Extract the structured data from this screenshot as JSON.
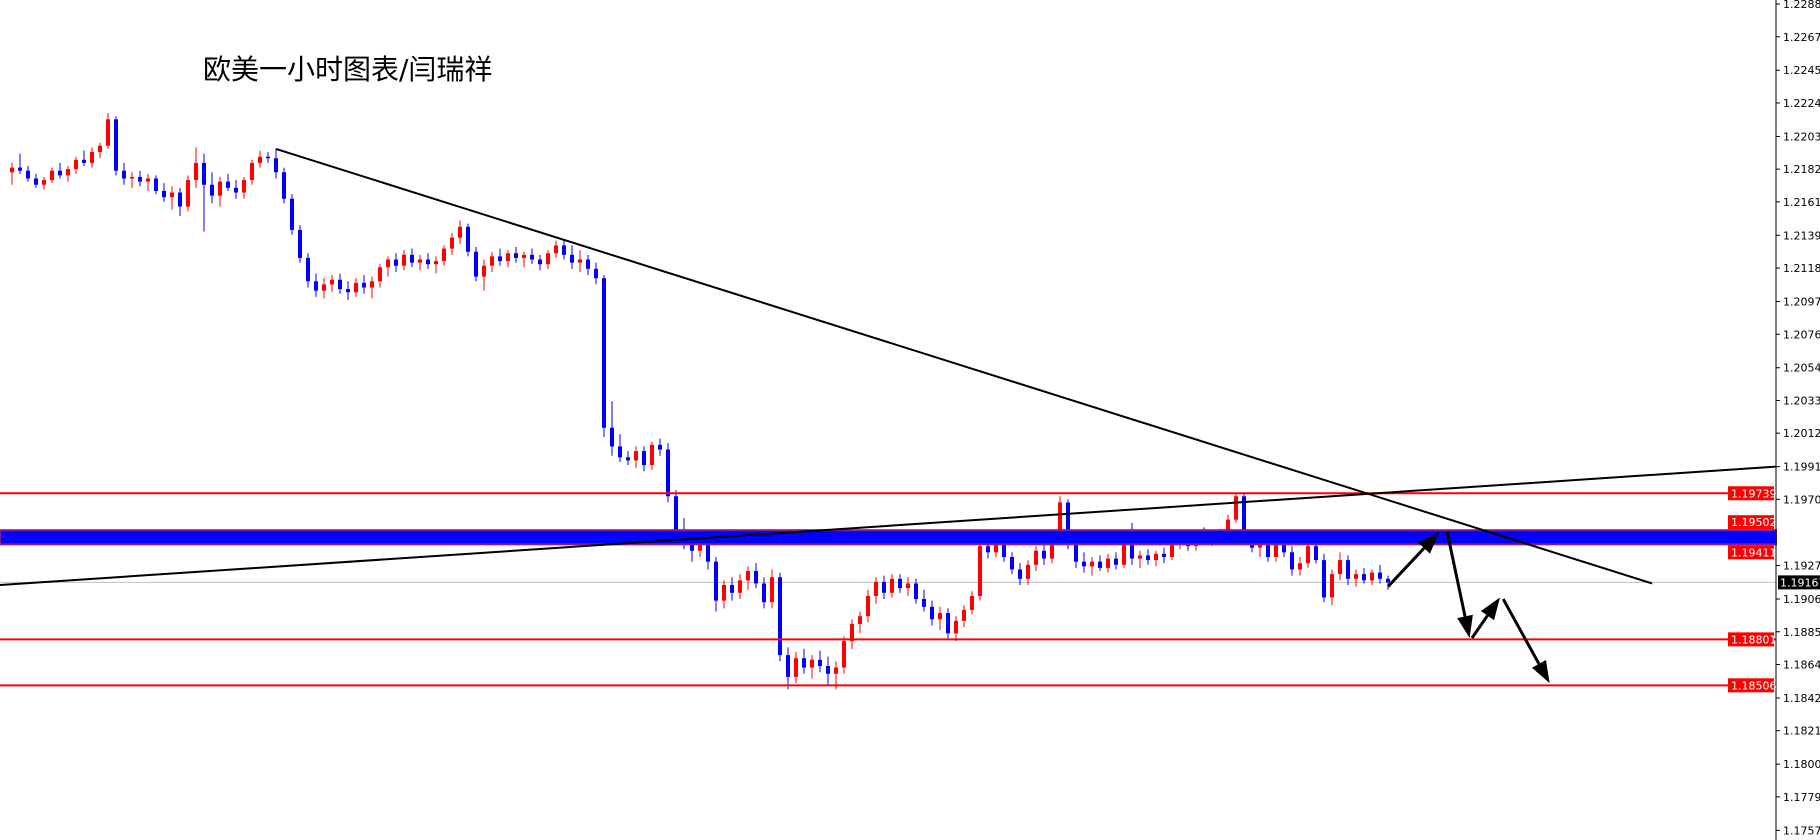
{
  "chart_data": {
    "type": "candlestick",
    "title": "欧美一小时图表/闫瑞祥",
    "ylim": [
      1.17513,
      1.22906
    ],
    "y_ticks": [
      "1.22880",
      "1.22670",
      "1.22455",
      "1.22245",
      "1.22030",
      "1.21820",
      "1.21610",
      "1.21395",
      "1.21185",
      "1.20970",
      "1.20760",
      "1.20545",
      "1.20335",
      "1.20125",
      "1.19910",
      "1.19700",
      "1.19275",
      "1.19060",
      "1.18850",
      "1.18640",
      "1.18425",
      "1.18215",
      "1.18000",
      "1.17790",
      "1.17575"
    ],
    "grid": false,
    "colors": {
      "bull": "#ff0000",
      "bear": "#0000ff",
      "support_resistance": "#ff0000",
      "zone_fill": "#0000ff",
      "zone_border": "#8b1a8b",
      "trendline": "#000000",
      "current_price_line": "#c0c0c0"
    },
    "current_price": {
      "value": 1.19167,
      "label": "1.19167"
    },
    "horizontal_levels": [
      {
        "value": 1.19739,
        "label": "1.19739"
      },
      {
        "value": 1.18801,
        "label": "1.18801"
      },
      {
        "value": 1.18506,
        "label": "1.18506"
      }
    ],
    "zone": {
      "upper": 1.19502,
      "lower": 1.19411,
      "upper_label": "1.19502",
      "lower_label": "1.19411"
    },
    "trendlines": [
      {
        "from": [
          33,
          1.2195
        ],
        "to": [
          205,
          1.1916
        ]
      },
      {
        "from": [
          -1.5,
          1.1915
        ],
        "to": [
          220.5,
          1.1991
        ]
      }
    ],
    "arrows": [
      {
        "from": [
          172,
          1.1914
        ],
        "to": [
          178.4,
          1.1949
        ]
      },
      {
        "from": [
          179.4,
          1.1949
        ],
        "to": [
          182.2,
          1.1881
        ]
      },
      {
        "from": [
          182.5,
          1.1881
        ],
        "to": [
          186,
          1.1907
        ]
      },
      {
        "from": [
          186.4,
          1.1906
        ],
        "to": [
          192.2,
          1.1852
        ]
      }
    ],
    "candles_ohlc": [
      [
        1.218,
        1.2186,
        1.2172,
        1.2183
      ],
      [
        1.2183,
        1.2192,
        1.2179,
        1.2181
      ],
      [
        1.2181,
        1.2184,
        1.2174,
        1.2176
      ],
      [
        1.2176,
        1.2179,
        1.217,
        1.2172
      ],
      [
        1.2172,
        1.2177,
        1.2169,
        1.2175
      ],
      [
        1.2175,
        1.2183,
        1.2173,
        1.2181
      ],
      [
        1.2181,
        1.2186,
        1.2176,
        1.2178
      ],
      [
        1.2178,
        1.2184,
        1.2174,
        1.2182
      ],
      [
        1.2182,
        1.219,
        1.2179,
        1.2188
      ],
      [
        1.2188,
        1.2194,
        1.2184,
        1.2186
      ],
      [
        1.2186,
        1.2196,
        1.2183,
        1.2193
      ],
      [
        1.2193,
        1.2199,
        1.2189,
        1.2197
      ],
      [
        1.2197,
        1.2218,
        1.2195,
        1.2214
      ],
      [
        1.2214,
        1.2216,
        1.2178,
        1.2181
      ],
      [
        1.2181,
        1.2186,
        1.2172,
        1.2176
      ],
      [
        1.2176,
        1.218,
        1.217,
        1.2177
      ],
      [
        1.2177,
        1.2181,
        1.2171,
        1.2174
      ],
      [
        1.2174,
        1.2179,
        1.2168,
        1.2176
      ],
      [
        1.2176,
        1.2178,
        1.2166,
        1.2168
      ],
      [
        1.2168,
        1.2173,
        1.2161,
        1.2164
      ],
      [
        1.2164,
        1.2171,
        1.2156,
        1.2167
      ],
      [
        1.2167,
        1.217,
        1.2152,
        1.2158
      ],
      [
        1.2158,
        1.2178,
        1.2155,
        1.2175
      ],
      [
        1.2175,
        1.2196,
        1.217,
        1.2186
      ],
      [
        1.2186,
        1.2192,
        1.2142,
        1.2172
      ],
      [
        1.2172,
        1.218,
        1.216,
        1.2165
      ],
      [
        1.2165,
        1.2177,
        1.2158,
        1.2174
      ],
      [
        1.2174,
        1.2179,
        1.2168,
        1.217
      ],
      [
        1.217,
        1.2175,
        1.2163,
        1.2167
      ],
      [
        1.2167,
        1.2177,
        1.2163,
        1.2175
      ],
      [
        1.2175,
        1.2188,
        1.2172,
        1.2186
      ],
      [
        1.2186,
        1.2194,
        1.2183,
        1.219
      ],
      [
        1.219,
        1.2193,
        1.2186,
        1.2189
      ],
      [
        1.2189,
        1.2195,
        1.2176,
        1.218
      ],
      [
        1.218,
        1.2183,
        1.216,
        1.2163
      ],
      [
        1.2163,
        1.2166,
        1.214,
        1.2143
      ],
      [
        1.2143,
        1.2146,
        1.2122,
        1.2125
      ],
      [
        1.2125,
        1.2128,
        1.2106,
        1.211
      ],
      [
        1.211,
        1.2115,
        1.21,
        1.2104
      ],
      [
        1.2104,
        1.2112,
        1.2099,
        1.2108
      ],
      [
        1.2108,
        1.2114,
        1.2103,
        1.2111
      ],
      [
        1.2111,
        1.2115,
        1.2102,
        1.2105
      ],
      [
        1.2105,
        1.211,
        1.2098,
        1.2103
      ],
      [
        1.2103,
        1.2112,
        1.21,
        1.2109
      ],
      [
        1.2109,
        1.2114,
        1.2102,
        1.2106
      ],
      [
        1.2106,
        1.2113,
        1.2099,
        1.211
      ],
      [
        1.211,
        1.2121,
        1.2106,
        1.2119
      ],
      [
        1.2119,
        1.2126,
        1.2113,
        1.2124
      ],
      [
        1.2124,
        1.2128,
        1.2116,
        1.212
      ],
      [
        1.212,
        1.213,
        1.2117,
        1.2127
      ],
      [
        1.2127,
        1.2131,
        1.2119,
        1.2122
      ],
      [
        1.2122,
        1.2127,
        1.2117,
        1.2124
      ],
      [
        1.2124,
        1.2128,
        1.2118,
        1.2121
      ],
      [
        1.2121,
        1.2126,
        1.2115,
        1.2123
      ],
      [
        1.2123,
        1.2133,
        1.212,
        1.2131
      ],
      [
        1.2131,
        1.2141,
        1.2127,
        1.2138
      ],
      [
        1.2138,
        1.2149,
        1.2134,
        1.2145
      ],
      [
        1.2145,
        1.2147,
        1.2126,
        1.2129
      ],
      [
        1.2129,
        1.2132,
        1.211,
        1.2113
      ],
      [
        1.2113,
        1.2124,
        1.2104,
        1.212
      ],
      [
        1.212,
        1.2129,
        1.2116,
        1.2126
      ],
      [
        1.2126,
        1.2131,
        1.212,
        1.2123
      ],
      [
        1.2123,
        1.213,
        1.2119,
        1.2128
      ],
      [
        1.2128,
        1.2132,
        1.2122,
        1.2125
      ],
      [
        1.2125,
        1.2129,
        1.2119,
        1.2127
      ],
      [
        1.2127,
        1.2131,
        1.2121,
        1.2124
      ],
      [
        1.2124,
        1.2127,
        1.2117,
        1.2121
      ],
      [
        1.2121,
        1.213,
        1.2118,
        1.2128
      ],
      [
        1.2128,
        1.2136,
        1.2125,
        1.2133
      ],
      [
        1.2133,
        1.2137,
        1.2124,
        1.2127
      ],
      [
        1.2127,
        1.2133,
        1.2118,
        1.2122
      ],
      [
        1.2122,
        1.213,
        1.2116,
        1.2124
      ],
      [
        1.2124,
        1.2127,
        1.2114,
        1.2118
      ],
      [
        1.2118,
        1.2122,
        1.2108,
        1.2112
      ],
      [
        1.2112,
        1.2114,
        1.201,
        1.2016
      ],
      [
        1.2016,
        1.2033,
        1.1998,
        1.2004
      ],
      [
        1.2004,
        1.2012,
        1.1994,
        1.1997
      ],
      [
        1.1997,
        1.2001,
        1.1992,
        1.1995
      ],
      [
        1.1995,
        1.2004,
        1.199,
        1.2001
      ],
      [
        1.2001,
        1.2004,
        1.1988,
        1.1992
      ],
      [
        1.1992,
        1.2007,
        1.1989,
        1.2005
      ],
      [
        1.2005,
        1.2009,
        1.1998,
        1.2002
      ],
      [
        1.2002,
        1.2006,
        1.1968,
        1.1972
      ],
      [
        1.1972,
        1.1976,
        1.1945,
        1.195
      ],
      [
        1.195,
        1.1958,
        1.1938,
        1.1946
      ],
      [
        1.1946,
        1.195,
        1.193,
        1.1937
      ],
      [
        1.1937,
        1.1947,
        1.1933,
        1.1944
      ],
      [
        1.1944,
        1.1946,
        1.1925,
        1.193
      ],
      [
        1.193,
        1.1933,
        1.1898,
        1.1905
      ],
      [
        1.1905,
        1.1918,
        1.19,
        1.1915
      ],
      [
        1.1915,
        1.192,
        1.1905,
        1.191
      ],
      [
        1.191,
        1.1922,
        1.1906,
        1.1918
      ],
      [
        1.1918,
        1.1927,
        1.1912,
        1.1924
      ],
      [
        1.1924,
        1.1929,
        1.1913,
        1.1916
      ],
      [
        1.1916,
        1.192,
        1.19,
        1.1904
      ],
      [
        1.1904,
        1.1925,
        1.19,
        1.192
      ],
      [
        1.192,
        1.1923,
        1.1866,
        1.187
      ],
      [
        1.187,
        1.1875,
        1.1848,
        1.1856
      ],
      [
        1.1856,
        1.1872,
        1.1852,
        1.1868
      ],
      [
        1.1868,
        1.1874,
        1.1858,
        1.1862
      ],
      [
        1.1862,
        1.187,
        1.1855,
        1.1867
      ],
      [
        1.1867,
        1.1873,
        1.1859,
        1.1863
      ],
      [
        1.1863,
        1.1869,
        1.1851,
        1.1858
      ],
      [
        1.1858,
        1.1866,
        1.1848,
        1.1862
      ],
      [
        1.1862,
        1.1882,
        1.1858,
        1.1879
      ],
      [
        1.1879,
        1.1893,
        1.1874,
        1.189
      ],
      [
        1.189,
        1.1898,
        1.1884,
        1.1895
      ],
      [
        1.1895,
        1.1912,
        1.1891,
        1.1908
      ],
      [
        1.1908,
        1.192,
        1.1903,
        1.1917
      ],
      [
        1.1917,
        1.1921,
        1.1906,
        1.191
      ],
      [
        1.191,
        1.1922,
        1.1907,
        1.1919
      ],
      [
        1.1919,
        1.1922,
        1.191,
        1.1913
      ],
      [
        1.1913,
        1.192,
        1.1908,
        1.1916
      ],
      [
        1.1916,
        1.1919,
        1.1903,
        1.1906
      ],
      [
        1.1906,
        1.1912,
        1.1898,
        1.1901
      ],
      [
        1.1901,
        1.1905,
        1.1889,
        1.1893
      ],
      [
        1.1893,
        1.1901,
        1.1886,
        1.1897
      ],
      [
        1.1897,
        1.19,
        1.188,
        1.1884
      ],
      [
        1.1884,
        1.1895,
        1.1879,
        1.1892
      ],
      [
        1.1892,
        1.1902,
        1.1888,
        1.1899
      ],
      [
        1.1899,
        1.1911,
        1.1896,
        1.1908
      ],
      [
        1.1908,
        1.1946,
        1.1905,
        1.194
      ],
      [
        1.194,
        1.1947,
        1.1932,
        1.1936
      ],
      [
        1.1936,
        1.1944,
        1.1933,
        1.1941
      ],
      [
        1.1941,
        1.1943,
        1.193,
        1.1933
      ],
      [
        1.1933,
        1.1936,
        1.1922,
        1.1925
      ],
      [
        1.1925,
        1.1929,
        1.1915,
        1.1919
      ],
      [
        1.1919,
        1.1931,
        1.1915,
        1.1928
      ],
      [
        1.1928,
        1.194,
        1.1924,
        1.1937
      ],
      [
        1.1937,
        1.1943,
        1.1928,
        1.1932
      ],
      [
        1.1932,
        1.1951,
        1.1929,
        1.1948
      ],
      [
        1.1948,
        1.1972,
        1.1944,
        1.1968
      ],
      [
        1.1968,
        1.197,
        1.1938,
        1.1942
      ],
      [
        1.1942,
        1.1945,
        1.1926,
        1.193
      ],
      [
        1.193,
        1.1936,
        1.1923,
        1.1927
      ],
      [
        1.1927,
        1.1933,
        1.1921,
        1.193
      ],
      [
        1.193,
        1.1934,
        1.1924,
        1.1926
      ],
      [
        1.1926,
        1.1935,
        1.1923,
        1.1932
      ],
      [
        1.1932,
        1.1936,
        1.1925,
        1.1928
      ],
      [
        1.1928,
        1.1944,
        1.1926,
        1.1942
      ],
      [
        1.1942,
        1.1955,
        1.1928,
        1.1932
      ],
      [
        1.1932,
        1.1937,
        1.1926,
        1.1934
      ],
      [
        1.1934,
        1.1938,
        1.1928,
        1.1931
      ],
      [
        1.1931,
        1.1937,
        1.1927,
        1.1935
      ],
      [
        1.1935,
        1.1939,
        1.1929,
        1.1933
      ],
      [
        1.1933,
        1.1944,
        1.1931,
        1.1942
      ],
      [
        1.1942,
        1.1948,
        1.1938,
        1.1945
      ],
      [
        1.1945,
        1.195,
        1.1937,
        1.194
      ],
      [
        1.194,
        1.1949,
        1.1937,
        1.1946
      ],
      [
        1.1946,
        1.1952,
        1.1941,
        1.1944
      ],
      [
        1.1944,
        1.195,
        1.194,
        1.1947
      ],
      [
        1.1947,
        1.1951,
        1.1942,
        1.1945
      ],
      [
        1.1945,
        1.196,
        1.1943,
        1.1957
      ],
      [
        1.1957,
        1.1974,
        1.1955,
        1.1972
      ],
      [
        1.1972,
        1.1974,
        1.1944,
        1.1947
      ],
      [
        1.1947,
        1.195,
        1.1936,
        1.1939
      ],
      [
        1.1939,
        1.1944,
        1.1933,
        1.1941
      ],
      [
        1.1941,
        1.1943,
        1.193,
        1.1933
      ],
      [
        1.1933,
        1.1946,
        1.193,
        1.1943
      ],
      [
        1.1943,
        1.1946,
        1.1933,
        1.1936
      ],
      [
        1.1936,
        1.194,
        1.1921,
        1.1925
      ],
      [
        1.1925,
        1.1933,
        1.1921,
        1.1929
      ],
      [
        1.1929,
        1.1944,
        1.1926,
        1.194
      ],
      [
        1.194,
        1.1943,
        1.1929,
        1.1931
      ],
      [
        1.1931,
        1.1935,
        1.1904,
        1.1907
      ],
      [
        1.1907,
        1.1925,
        1.1902,
        1.1922
      ],
      [
        1.1922,
        1.1936,
        1.1918,
        1.1931
      ],
      [
        1.1931,
        1.1934,
        1.1915,
        1.1919
      ],
      [
        1.1919,
        1.1925,
        1.1914,
        1.1922
      ],
      [
        1.1922,
        1.1926,
        1.1916,
        1.1918
      ],
      [
        1.1918,
        1.1925,
        1.1915,
        1.1923
      ],
      [
        1.1923,
        1.1928,
        1.1916,
        1.1919
      ],
      [
        1.1919,
        1.1921,
        1.1912,
        1.19167
      ]
    ]
  }
}
